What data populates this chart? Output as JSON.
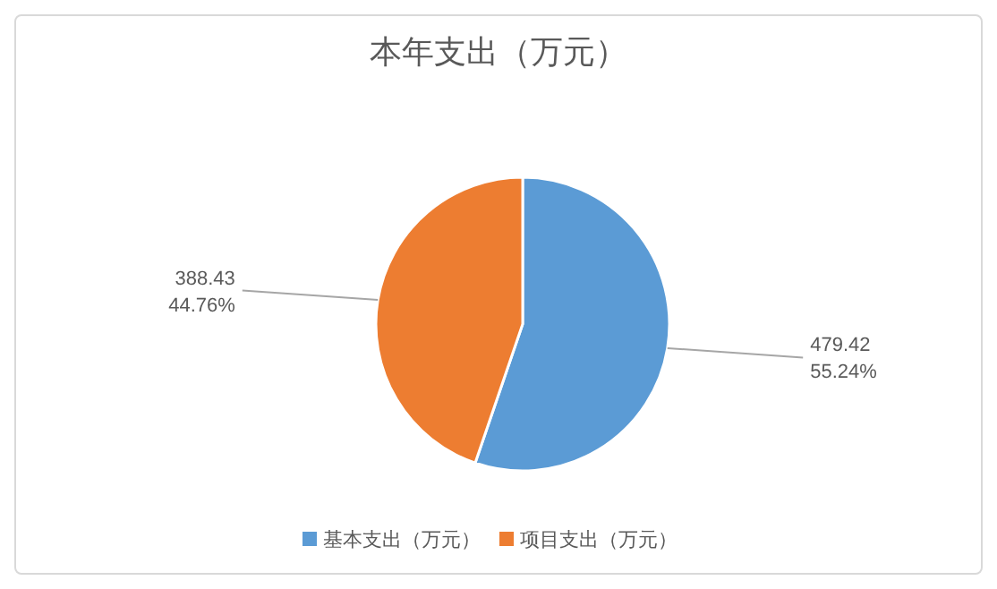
{
  "chart_data": {
    "type": "pie",
    "title": "本年支出（万元）",
    "categories": [
      "基本支出（万元）",
      "项目支出（万元）"
    ],
    "values": [
      479.42,
      388.43
    ],
    "colors": [
      "#5b9bd5",
      "#ed7d31"
    ],
    "value_labels": [
      "479.42\n55.24%",
      "388.43\n44.76%"
    ],
    "legend": "bottom"
  }
}
